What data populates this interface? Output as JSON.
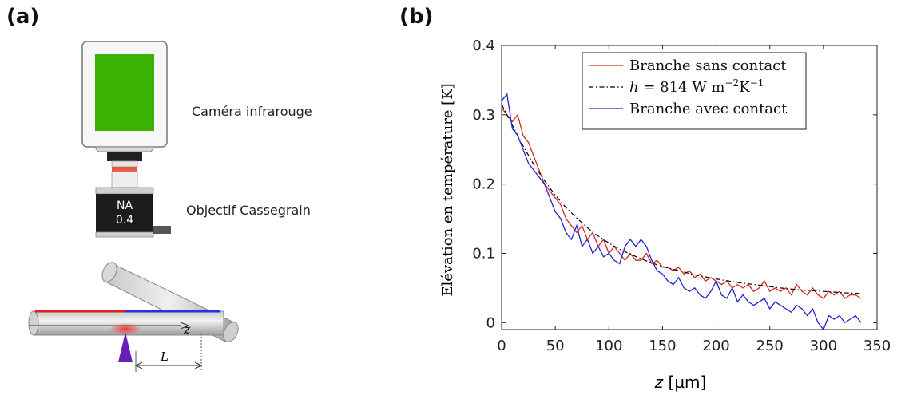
{
  "panel_a": {
    "label": "(a)",
    "camera_label": "Caméra infrarouge",
    "objective_label": "Objectif Cassegrain",
    "objective_text_line1": "NA",
    "objective_text_line2": "0.4",
    "axis_label": "z",
    "length_label": "L",
    "colors": {
      "screen": "#3bb300",
      "hot_branch": "#e0201c",
      "cold_branch": "#2b2fd9",
      "laser": "#6a1fb8"
    }
  },
  "panel_b": {
    "label": "(b)"
  },
  "chart_data": {
    "type": "line",
    "xlabel_var": "z",
    "xlabel_unit": "[µm]",
    "ylabel": "Elévation en température [K]",
    "xlim": [
      0,
      350
    ],
    "ylim": [
      -0.01,
      0.4
    ],
    "xticks": [
      0,
      50,
      100,
      150,
      200,
      250,
      300,
      350
    ],
    "yticks": [
      0,
      0.1,
      0.2,
      0.3,
      0.4
    ],
    "ytick_labels": [
      "0",
      "0.1",
      "0.2",
      "0.3",
      "0.4"
    ],
    "grid": false,
    "legend_position": "top-right",
    "legend": [
      {
        "label": "Branche sans contact",
        "color": "#d62728",
        "style": "solid"
      },
      {
        "label_parts": [
          "h",
          " = 814 W m",
          "−2",
          "K",
          "−1"
        ],
        "color": "#000000",
        "style": "dashdot"
      },
      {
        "label": "Branche avec contact",
        "color": "#2323c8",
        "style": "solid"
      }
    ],
    "series": [
      {
        "name": "Branche sans contact",
        "color": "#d62728",
        "x": [
          0,
          5,
          10,
          15,
          20,
          25,
          30,
          35,
          40,
          45,
          50,
          55,
          60,
          65,
          70,
          75,
          80,
          85,
          90,
          95,
          100,
          105,
          110,
          115,
          120,
          125,
          130,
          135,
          140,
          145,
          150,
          155,
          160,
          165,
          170,
          175,
          180,
          185,
          190,
          195,
          200,
          205,
          210,
          215,
          220,
          225,
          230,
          235,
          240,
          245,
          250,
          255,
          260,
          265,
          270,
          275,
          280,
          285,
          290,
          295,
          300,
          305,
          310,
          315,
          320,
          325,
          330,
          335
        ],
        "y": [
          0.31,
          0.3,
          0.29,
          0.3,
          0.27,
          0.26,
          0.24,
          0.22,
          0.2,
          0.19,
          0.18,
          0.17,
          0.15,
          0.14,
          0.13,
          0.14,
          0.12,
          0.13,
          0.11,
          0.12,
          0.1,
          0.11,
          0.1,
          0.09,
          0.1,
          0.09,
          0.09,
          0.1,
          0.085,
          0.09,
          0.08,
          0.08,
          0.075,
          0.08,
          0.07,
          0.075,
          0.065,
          0.07,
          0.06,
          0.065,
          0.06,
          0.055,
          0.06,
          0.05,
          0.055,
          0.05,
          0.055,
          0.045,
          0.05,
          0.06,
          0.045,
          0.05,
          0.045,
          0.05,
          0.04,
          0.055,
          0.045,
          0.04,
          0.05,
          0.04,
          0.035,
          0.045,
          0.04,
          0.045,
          0.035,
          0.04,
          0.04,
          0.035
        ]
      },
      {
        "name": "h = 814 W m^-2 K^-1",
        "color": "#000000",
        "x": [
          0,
          10,
          20,
          30,
          40,
          50,
          60,
          70,
          80,
          90,
          100,
          110,
          120,
          130,
          140,
          150,
          160,
          170,
          180,
          190,
          200,
          220,
          240,
          260,
          280,
          300,
          320,
          335
        ],
        "y": [
          0.315,
          0.285,
          0.255,
          0.228,
          0.205,
          0.184,
          0.166,
          0.151,
          0.137,
          0.125,
          0.115,
          0.106,
          0.099,
          0.092,
          0.086,
          0.081,
          0.077,
          0.073,
          0.069,
          0.066,
          0.063,
          0.058,
          0.054,
          0.05,
          0.047,
          0.045,
          0.043,
          0.042
        ]
      },
      {
        "name": "Branche avec contact",
        "color": "#2323c8",
        "x": [
          0,
          5,
          10,
          15,
          20,
          25,
          30,
          35,
          40,
          45,
          50,
          55,
          60,
          65,
          70,
          75,
          80,
          85,
          90,
          95,
          100,
          105,
          110,
          115,
          120,
          125,
          130,
          135,
          140,
          145,
          150,
          155,
          160,
          165,
          170,
          175,
          180,
          185,
          190,
          195,
          200,
          205,
          210,
          215,
          220,
          225,
          230,
          235,
          240,
          245,
          250,
          255,
          260,
          265,
          270,
          275,
          280,
          285,
          290,
          295,
          300,
          305,
          310,
          315,
          320,
          325,
          330,
          335
        ],
        "y": [
          0.32,
          0.33,
          0.28,
          0.27,
          0.25,
          0.23,
          0.22,
          0.21,
          0.2,
          0.18,
          0.16,
          0.15,
          0.13,
          0.12,
          0.14,
          0.11,
          0.12,
          0.1,
          0.11,
          0.095,
          0.1,
          0.09,
          0.085,
          0.11,
          0.12,
          0.11,
          0.12,
          0.11,
          0.09,
          0.075,
          0.07,
          0.06,
          0.055,
          0.065,
          0.05,
          0.045,
          0.05,
          0.04,
          0.035,
          0.045,
          0.06,
          0.04,
          0.035,
          0.05,
          0.03,
          0.04,
          0.03,
          0.025,
          0.03,
          0.035,
          0.02,
          0.03,
          0.025,
          0.02,
          0.015,
          0.025,
          0.02,
          0.01,
          0.02,
          0.0,
          -0.01,
          0.01,
          0.005,
          0.01,
          0.0,
          0.005,
          0.01,
          0.0
        ]
      }
    ]
  }
}
